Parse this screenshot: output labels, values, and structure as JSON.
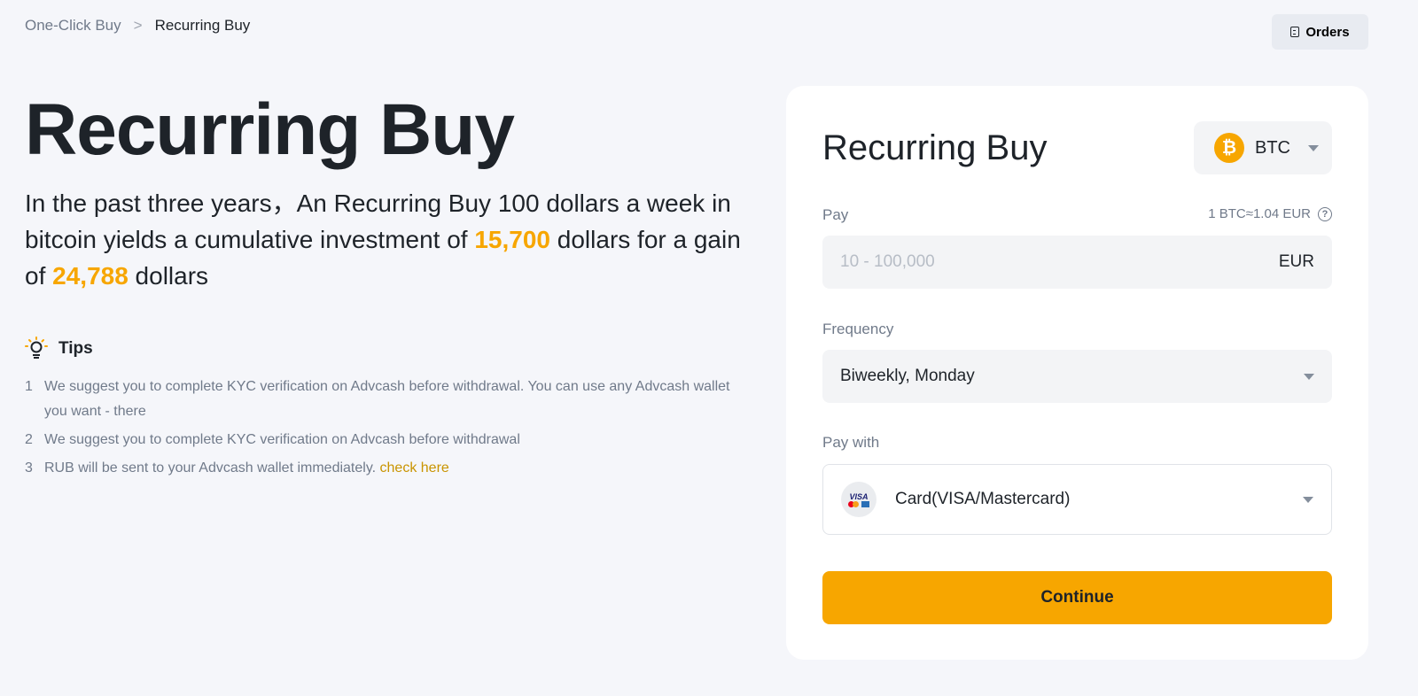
{
  "breadcrumb": {
    "parent": "One-Click Buy",
    "separator": ">",
    "current": "Recurring Buy"
  },
  "header": {
    "orders_label": "Orders"
  },
  "hero": {
    "title": "Recurring Buy",
    "subtitle_part1": "In the past three years，An Recurring Buy 100 dollars a week in bitcoin yields a cumulative investment of ",
    "investment": "15,700",
    "subtitle_part2": " dollars for a gain of ",
    "gain": "24,788",
    "subtitle_part3": " dollars"
  },
  "tips": {
    "title": "Tips",
    "items": [
      {
        "num": "1",
        "text": "We suggest you to complete KYC verification on Advcash before withdrawal. You can use any Advcash wallet you want - there"
      },
      {
        "num": "2",
        "text": "We suggest you to complete KYC verification on Advcash before withdrawal"
      },
      {
        "num": "3",
        "text": "RUB will be sent to your Advcash wallet immediately. ",
        "link": "check here"
      }
    ]
  },
  "form": {
    "title": "Recurring Buy",
    "coin": "BTC",
    "coin_symbol": "₿",
    "pay_label": "Pay",
    "rate": "1 BTC≈1.04 EUR",
    "pay_placeholder": "10 -  100,000",
    "pay_currency": "EUR",
    "frequency_label": "Frequency",
    "frequency_value": "Biweekly, Monday",
    "pay_with_label": "Pay with",
    "pay_with_value": "Card(VISA/Mastercard)",
    "visa_text": "VISA",
    "continue_label": "Continue"
  },
  "colors": {
    "accent": "#f7a600",
    "background": "#f5f6fa"
  }
}
